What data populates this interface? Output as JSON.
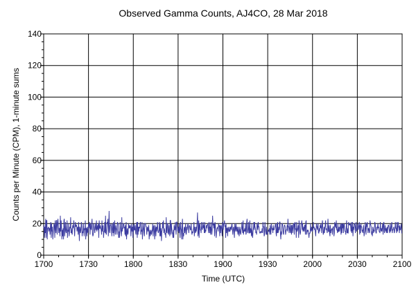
{
  "chart_data": {
    "type": "line",
    "title": "Observed Gamma Counts, AJ4CO, 28 Mar 2018",
    "xlabel": "Time (UTC)",
    "ylabel": "Counts per Minute (CPM), 1-minute sums",
    "x_tick_labels": [
      "1700",
      "1730",
      "1800",
      "1830",
      "1900",
      "1930",
      "2000",
      "2030",
      "2100"
    ],
    "y_tick_labels": [
      "0",
      "20",
      "40",
      "60",
      "80",
      "100",
      "120",
      "140"
    ],
    "xlim_minutes": [
      0,
      240
    ],
    "ylim": [
      0,
      140
    ],
    "grid": true,
    "line_color": "#3c3ca0",
    "series": [
      {
        "values": [
          17,
          19,
          11,
          18,
          14,
          23,
          11,
          22,
          22,
          10,
          17,
          17,
          18,
          15,
          17,
          17,
          13,
          19,
          21,
          11,
          20,
          15,
          18,
          10,
          14,
          16,
          20,
          19,
          11,
          22,
          17,
          14,
          22,
          22,
          13,
          20,
          23,
          19,
          14,
          17,
          17,
          12,
          25,
          15,
          22,
          18,
          10,
          16,
          12,
          17,
          10,
          22,
          23,
          12,
          16,
          21,
          15,
          14,
          17,
          22,
          11,
          16,
          15,
          20,
          12,
          14,
          18,
          17,
          24,
          14,
          17,
          14,
          13,
          19,
          17,
          18,
          22,
          17,
          12,
          17,
          21,
          18,
          19,
          19,
          15,
          17,
          18,
          13,
          21,
          16,
          9,
          18,
          17,
          14,
          16,
          21,
          19,
          12,
          15,
          14,
          20,
          17,
          12,
          17,
          16,
          22,
          10,
          17,
          17,
          12,
          18,
          15,
          14,
          20,
          17,
          20,
          21,
          13,
          20,
          17,
          16,
          20,
          23,
          14,
          12,
          13,
          20,
          19,
          16,
          14,
          18,
          20,
          16,
          22,
          15,
          17,
          19,
          16,
          20,
          11,
          22,
          17,
          17,
          19,
          17,
          16,
          13,
          22,
          15,
          18,
          19,
          11,
          15,
          15,
          21,
          14,
          25,
          14,
          13,
          17,
          21,
          20,
          23,
          12,
          18,
          28,
          15,
          14,
          19,
          19,
          20,
          16,
          12,
          18,
          20,
          14,
          21,
          12,
          17,
          22,
          15,
          13,
          19,
          17,
          16,
          13,
          21,
          20,
          20,
          11,
          15,
          11,
          16,
          21,
          17,
          14,
          12,
          24,
          15,
          17,
          17,
          20,
          20,
          17,
          18,
          13,
          19,
          12,
          21,
          10,
          15,
          17,
          13,
          14,
          20,
          17,
          19,
          17,
          18,
          19,
          12,
          16,
          20,
          15,
          18,
          11,
          19,
          15,
          20,
          16,
          16,
          19,
          14,
          13,
          20,
          21,
          11,
          21,
          13,
          18,
          15,
          18,
          17,
          20,
          21,
          13,
          16,
          15,
          21,
          10,
          15,
          17,
          20,
          14,
          12,
          20,
          20,
          20,
          18,
          18,
          13,
          17,
          18,
          15,
          16,
          19,
          10,
          14,
          16,
          12,
          14,
          16,
          13,
          15,
          16,
          20,
          12,
          18,
          19,
          14,
          10,
          19,
          17,
          12,
          18,
          15,
          17,
          21,
          16,
          14,
          15,
          16,
          21,
          12,
          20,
          12,
          17,
          9,
          15,
          16,
          21,
          17,
          22,
          14,
          17,
          16,
          13,
          14,
          11,
          24,
          15,
          14,
          20,
          20,
          14,
          13,
          19,
          15,
          12,
          22,
          22,
          13,
          20,
          17,
          14,
          14,
          11,
          16,
          11,
          19,
          16,
          16,
          21,
          17,
          13,
          21,
          21,
          20,
          15,
          16,
          18,
          14,
          20,
          16,
          11,
          21,
          17,
          16,
          10,
          19,
          23,
          10,
          14,
          12,
          17,
          18,
          14,
          17,
          20,
          13,
          14,
          18,
          16,
          19,
          20,
          18,
          14,
          18,
          19,
          18,
          16,
          16,
          20,
          15,
          13,
          15,
          14,
          16,
          17,
          21,
          12,
          18,
          15,
          14,
          18,
          15,
          18,
          21,
          27,
          12,
          14,
          22,
          11,
          19,
          20,
          16,
          16,
          14,
          21,
          17,
          16,
          18,
          21,
          17,
          19,
          14,
          21,
          14,
          16,
          15,
          19,
          17,
          19,
          19,
          20,
          16,
          14,
          21,
          19,
          14,
          18,
          13,
          21,
          17,
          13,
          16,
          25,
          19,
          20,
          17,
          20,
          12,
          21,
          19,
          15,
          11,
          15,
          17,
          17,
          18,
          15,
          20,
          18,
          19,
          12,
          19,
          14,
          18,
          19,
          16,
          12,
          21,
          19,
          16,
          20,
          20,
          22,
          18,
          19,
          11,
          20,
          14,
          17,
          17,
          12,
          18,
          17,
          15,
          15,
          18,
          15,
          17,
          18,
          16,
          19,
          20,
          16,
          13,
          17,
          18,
          15,
          11,
          20,
          17,
          15,
          20,
          17,
          15,
          18,
          15,
          13,
          18,
          15,
          12,
          16,
          18,
          14,
          13,
          16,
          17,
          21,
          16,
          14,
          22,
          13,
          16,
          15,
          17,
          15,
          20,
          13,
          14,
          21,
          23,
          15,
          14,
          17,
          21,
          14,
          14,
          22,
          14,
          17,
          15,
          12,
          20,
          13,
          11,
          15,
          17,
          21,
          16,
          21,
          18,
          17,
          14,
          15,
          13,
          20,
          18,
          16,
          21,
          18,
          18,
          15,
          14,
          14,
          15,
          15,
          14,
          15,
          17,
          14,
          21,
          18,
          18,
          12,
          13,
          21,
          17,
          15,
          13,
          18,
          13,
          14,
          14,
          15,
          16,
          15,
          17,
          13,
          19,
          15,
          13,
          20,
          18,
          16,
          17,
          14,
          19,
          16,
          16,
          17,
          18,
          19,
          20,
          14,
          12,
          20,
          14,
          21,
          14,
          15,
          18,
          16,
          21,
          21,
          14,
          10,
          15,
          13,
          20,
          20,
          18,
          14,
          13,
          17,
          19,
          19,
          18,
          13,
          15,
          16,
          16,
          19,
          15,
          23,
          18,
          18,
          14,
          17,
          20,
          15,
          14,
          19,
          13,
          19,
          19,
          14,
          17,
          20,
          20,
          13,
          20,
          21,
          16,
          17,
          11,
          21,
          15,
          16,
          17,
          19,
          11,
          22,
          19,
          15,
          13,
          15,
          20,
          20,
          22,
          16,
          20,
          15,
          16,
          18,
          15,
          19,
          19,
          13,
          21,
          22,
          13,
          14,
          16,
          15,
          16,
          14,
          11,
          14,
          14,
          14,
          20,
          16,
          15,
          18,
          16,
          15,
          16,
          21,
          17,
          18,
          16,
          17,
          15,
          12,
          17,
          20,
          18,
          16,
          18,
          20,
          14,
          14,
          17,
          15,
          19,
          17,
          20,
          18,
          14,
          19,
          22,
          17,
          13,
          14,
          18,
          14,
          17,
          19,
          22,
          16,
          17,
          16,
          14,
          18,
          23,
          15,
          15,
          19,
          14,
          12,
          19,
          14,
          16,
          16,
          17,
          13,
          17,
          18,
          18,
          12,
          14,
          21,
          18,
          20,
          17,
          22,
          16,
          16,
          14,
          20,
          15,
          15,
          18,
          15,
          17,
          20,
          17,
          13,
          20,
          14,
          20,
          17,
          20,
          14,
          19,
          20,
          17,
          15,
          15,
          13,
          18,
          22,
          14,
          17,
          14,
          14,
          21,
          19,
          20,
          19,
          20,
          19,
          15,
          21,
          14,
          16,
          21,
          12,
          18,
          16,
          20,
          20,
          19,
          14,
          18,
          21,
          15,
          16,
          17,
          20,
          16,
          17,
          19,
          21,
          13,
          19,
          14,
          20,
          18,
          18,
          15,
          16,
          14,
          17,
          19,
          12,
          14,
          15,
          21,
          17,
          13,
          20,
          18,
          21,
          17,
          14,
          17,
          17,
          15,
          14,
          22,
          20,
          19,
          18,
          13,
          15,
          12,
          18,
          17,
          14,
          16,
          15,
          21,
          20,
          16,
          14,
          14,
          18,
          16,
          18,
          20,
          17,
          18,
          15,
          15,
          14,
          21,
          17,
          15,
          17,
          15,
          18,
          20,
          13,
          20,
          21,
          15,
          14,
          19,
          17,
          15,
          17,
          14,
          18,
          14,
          17,
          19,
          19,
          17,
          15,
          14,
          20,
          15,
          16,
          19,
          21,
          14,
          16,
          16,
          17,
          18,
          14,
          15,
          17,
          21,
          17,
          17,
          14,
          21,
          15,
          16,
          21,
          18,
          18,
          14,
          19,
          16,
          16,
          18,
          20,
          14,
          14
        ]
      }
    ]
  }
}
